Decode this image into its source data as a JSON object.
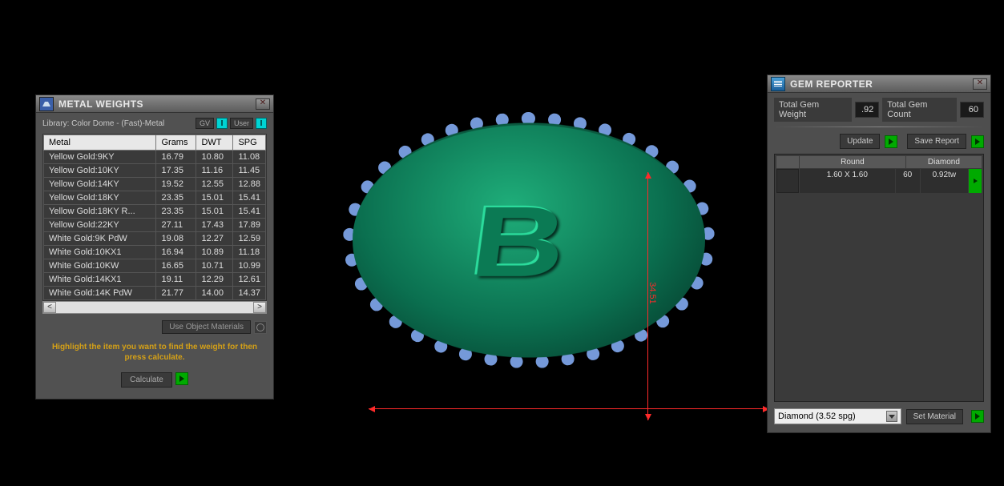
{
  "viewport": {
    "background_color": "#000000",
    "coin_color": "#0f8a5e",
    "coin_highlight": "#2bdc9c",
    "gem_ring_color": "#8ab4ff",
    "dimension_color": "#ff2a2a",
    "dim_vertical_value": "34.51",
    "dim_horizontal_value": "",
    "symbol": "B"
  },
  "metal_weights": {
    "title": "METAL WEIGHTS",
    "library_label": "Library: Color Dome - (Fast)-Metal",
    "gv_label": "GV",
    "user_label": "User",
    "columns": [
      "Metal",
      "Grams",
      "DWT",
      "SPG"
    ],
    "rows": [
      [
        "Yellow Gold:9KY",
        "16.79",
        "10.80",
        "11.08"
      ],
      [
        "Yellow Gold:10KY",
        "17.35",
        "11.16",
        "11.45"
      ],
      [
        "Yellow Gold:14KY",
        "19.52",
        "12.55",
        "12.88"
      ],
      [
        "Yellow Gold:18KY",
        "23.35",
        "15.01",
        "15.41"
      ],
      [
        "Yellow Gold:18KY R...",
        "23.35",
        "15.01",
        "15.41"
      ],
      [
        "Yellow Gold:22KY",
        "27.11",
        "17.43",
        "17.89"
      ],
      [
        "White Gold:9K PdW",
        "19.08",
        "12.27",
        "12.59"
      ],
      [
        "White Gold:10KX1",
        "16.94",
        "10.89",
        "11.18"
      ],
      [
        "White Gold:10KW",
        "16.65",
        "10.71",
        "10.99"
      ],
      [
        "White Gold:14KX1",
        "19.11",
        "12.29",
        "12.61"
      ],
      [
        "White Gold:14K PdW",
        "21.77",
        "14.00",
        "14.37"
      ]
    ],
    "use_obj_materials": "Use Object Materials",
    "hint": "Highlight the item you want to find the weight for then press calculate.",
    "calculate": "Calculate"
  },
  "gem_reporter": {
    "title": "GEM REPORTER",
    "total_weight_label": "Total Gem Weight",
    "total_weight_value": ".92",
    "total_count_label": "Total Gem Count",
    "total_count_value": "60",
    "update": "Update",
    "save_report": "Save Report",
    "list_header": {
      "shape": "Round",
      "type": "Diamond"
    },
    "list_row": {
      "size": "1.60 X 1.60",
      "count": "60",
      "tw": "0.92tw"
    },
    "material_select": "Diamond    (3.52 spg)",
    "set_material": "Set Material"
  },
  "style": {
    "panel_bg": "#515151",
    "header_gradient_top": "#8a8a8a",
    "header_gradient_bottom": "#5c5c5c",
    "text_color": "#e8e8e8",
    "table_header_bg": "#e8e8e8",
    "table_cell_bg": "#3a3a3a",
    "hint_color": "#d4a017",
    "accent_green": "#00aa00",
    "accent_cyan": "#00d4d4",
    "font_family": "Tahoma",
    "title_fontsize": 12,
    "body_fontsize": 11,
    "small_fontsize": 10
  }
}
